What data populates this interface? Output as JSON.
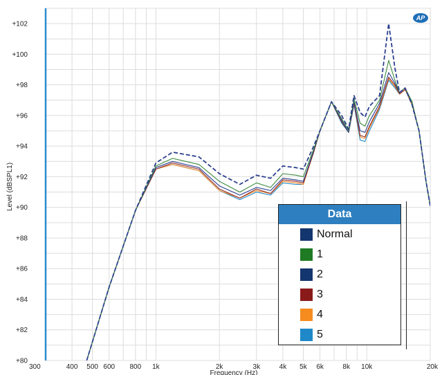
{
  "chart_data": {
    "type": "line",
    "xlabel": "Frequency (Hz)",
    "ylabel": "Level (dBSPL1)",
    "xscale": "log",
    "xlim": [
      300,
      20000
    ],
    "ylim": [
      80,
      103
    ],
    "grid": true,
    "legend_placement": "bottom-right",
    "x_ticks": [
      {
        "value": 300,
        "label": "300"
      },
      {
        "value": 400,
        "label": "400"
      },
      {
        "value": 500,
        "label": "500"
      },
      {
        "value": 600,
        "label": "600"
      },
      {
        "value": 800,
        "label": "800"
      },
      {
        "value": 1000,
        "label": "1k"
      },
      {
        "value": 2000,
        "label": "2k"
      },
      {
        "value": 3000,
        "label": "3k"
      },
      {
        "value": 4000,
        "label": "4k"
      },
      {
        "value": 5000,
        "label": "5k"
      },
      {
        "value": 6000,
        "label": "6k"
      },
      {
        "value": 8000,
        "label": "8k"
      },
      {
        "value": 10000,
        "label": "10k"
      },
      {
        "value": 20000,
        "label": "20k"
      }
    ],
    "y_ticks": [
      {
        "value": 80,
        "label": "+80"
      },
      {
        "value": 82,
        "label": "+82"
      },
      {
        "value": 84,
        "label": "+84"
      },
      {
        "value": 86,
        "label": "+86"
      },
      {
        "value": 88,
        "label": "+88"
      },
      {
        "value": 90,
        "label": "+90"
      },
      {
        "value": 92,
        "label": "+92"
      },
      {
        "value": 94,
        "label": "+94"
      },
      {
        "value": 96,
        "label": "+96"
      },
      {
        "value": 98,
        "label": "+98"
      },
      {
        "value": 100,
        "label": "+100"
      },
      {
        "value": 102,
        "label": "+102"
      }
    ],
    "legend_title": "Data",
    "series": [
      {
        "name": "Normal",
        "color": "#2b3f8f",
        "dashed": true,
        "x": [
          470,
          600,
          800,
          1000,
          1200,
          1600,
          2000,
          2500,
          3000,
          3500,
          4000,
          4600,
          5000,
          5600,
          6000,
          6800,
          7600,
          8200,
          8700,
          9300,
          9800,
          10300,
          11500,
          12700,
          13600,
          14300,
          15200,
          16400,
          17700,
          19100,
          20000
        ],
        "y": [
          80.0,
          84.8,
          89.8,
          92.9,
          93.6,
          93.3,
          92.2,
          91.5,
          92.1,
          91.9,
          92.7,
          92.6,
          92.5,
          94.0,
          95.0,
          96.9,
          96.0,
          95.1,
          97.3,
          96.2,
          95.9,
          96.6,
          97.3,
          102.0,
          99.1,
          97.5,
          97.8,
          96.7,
          95.0,
          91.7,
          90.1
        ]
      },
      {
        "name": "1",
        "color": "#3d8a3d",
        "x": [
          470,
          600,
          800,
          1000,
          1200,
          1600,
          2000,
          2500,
          3000,
          3500,
          4000,
          4600,
          5000,
          5600,
          6000,
          6800,
          7600,
          8200,
          8700,
          9300,
          9800,
          10300,
          11500,
          12700,
          13600,
          14300,
          15200,
          16400,
          17700,
          19100,
          20000
        ],
        "y": [
          80.0,
          84.8,
          89.8,
          92.7,
          93.2,
          92.8,
          91.7,
          91.0,
          91.6,
          91.3,
          92.2,
          92.1,
          92.0,
          93.8,
          95.0,
          96.9,
          95.8,
          95.0,
          97.1,
          95.5,
          95.3,
          96.0,
          97.0,
          99.6,
          98.3,
          97.5,
          97.8,
          96.9,
          95.0,
          91.7,
          90.1
        ]
      },
      {
        "name": "2",
        "color": "#2b3f8f",
        "x": [
          470,
          600,
          800,
          1000,
          1200,
          1600,
          2000,
          2500,
          3000,
          3500,
          4000,
          4600,
          5000,
          5600,
          6000,
          6800,
          7600,
          8200,
          8700,
          9300,
          9800,
          10300,
          11500,
          12700,
          13600,
          14300,
          15200,
          16400,
          17700,
          19100,
          20000
        ],
        "y": [
          80.0,
          84.8,
          89.8,
          92.6,
          93.0,
          92.6,
          91.4,
          90.8,
          91.3,
          91.1,
          91.9,
          91.8,
          91.7,
          93.7,
          95.0,
          96.9,
          95.7,
          94.9,
          96.9,
          95.0,
          94.9,
          95.6,
          96.8,
          98.8,
          98.1,
          97.5,
          97.8,
          96.8,
          95.0,
          91.7,
          90.1
        ]
      },
      {
        "name": "3",
        "color": "#8f2a2a",
        "x": [
          470,
          600,
          800,
          1000,
          1200,
          1600,
          2000,
          2500,
          3000,
          3500,
          4000,
          4600,
          5000,
          5600,
          6000,
          6800,
          7600,
          8200,
          8700,
          9300,
          9800,
          10300,
          11500,
          12700,
          13600,
          14300,
          15200,
          16400,
          17700,
          19100,
          20000
        ],
        "y": [
          80.0,
          84.8,
          89.8,
          92.5,
          92.9,
          92.5,
          91.2,
          90.6,
          91.2,
          90.9,
          91.8,
          91.7,
          91.6,
          93.6,
          95.0,
          96.9,
          95.6,
          94.9,
          96.8,
          94.7,
          94.6,
          95.3,
          96.6,
          98.5,
          98.0,
          97.4,
          97.7,
          96.8,
          95.0,
          91.7,
          90.1
        ]
      },
      {
        "name": "4",
        "color": "#f08a24",
        "x": [
          470,
          600,
          800,
          1000,
          1200,
          1600,
          2000,
          2500,
          3000,
          3500,
          4000,
          4600,
          5000,
          5600,
          6000,
          6800,
          7600,
          8200,
          8700,
          9300,
          9800,
          10300,
          11500,
          12700,
          13600,
          14300,
          15200,
          16400,
          17700,
          19100,
          20000
        ],
        "y": [
          80.0,
          84.8,
          89.8,
          92.5,
          92.8,
          92.4,
          91.1,
          90.6,
          91.1,
          90.9,
          91.7,
          91.6,
          91.5,
          93.6,
          95.0,
          96.9,
          95.6,
          94.9,
          96.8,
          94.6,
          94.5,
          95.2,
          96.5,
          98.4,
          97.9,
          97.4,
          97.7,
          96.7,
          95.0,
          91.7,
          90.1
        ]
      },
      {
        "name": "5",
        "color": "#1e88c8",
        "x": [
          470,
          600,
          800,
          1000,
          1200,
          1600,
          2000,
          2500,
          3000,
          3500,
          4000,
          4600,
          5000,
          5600,
          6000,
          6800,
          7600,
          8200,
          8700,
          9300,
          9800,
          10300,
          11500,
          12700,
          13600,
          14300,
          15200,
          16400,
          17700,
          19100,
          20000
        ],
        "y": [
          80.0,
          84.8,
          89.8,
          92.5,
          92.8,
          92.4,
          91.1,
          90.5,
          91.0,
          90.8,
          91.6,
          91.5,
          91.5,
          93.6,
          95.0,
          96.9,
          95.5,
          94.9,
          96.7,
          94.4,
          94.3,
          95.0,
          96.4,
          98.3,
          97.8,
          97.4,
          97.7,
          96.7,
          95.0,
          91.7,
          90.1
        ]
      }
    ],
    "legend_colors": {
      "Normal": "#14366e",
      "1": "#1f7a24",
      "2": "#14366e",
      "3": "#8a1a1a",
      "4": "#f68b1f",
      "5": "#1e88c8"
    }
  },
  "logo_text": "AP"
}
